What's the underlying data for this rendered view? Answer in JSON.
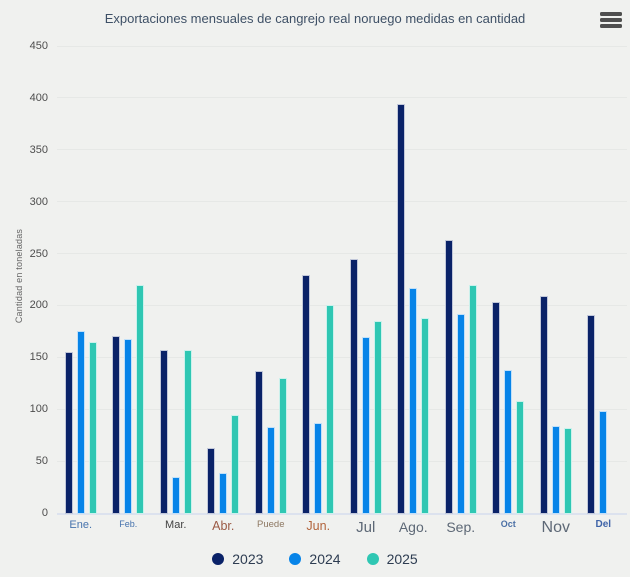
{
  "title": "Exportaciones mensuales de cangrejo real noruego medidas en cantidad",
  "context_menu": {
    "icon": "hamburger-menu-icon"
  },
  "colors": {
    "background": "#f0f1ef",
    "grid": "#e6e8e6",
    "axis_line": "#dce2ee",
    "title_text": "#3e5066",
    "ytick_text": "#4d4d4d",
    "y_axis_title_text": "#666666",
    "legend_text": "#2e3d52",
    "series_2023": "#0a2268",
    "series_2024": "#0784e8",
    "series_2025": "#2fc7b3"
  },
  "chart_data": {
    "type": "bar",
    "title": "Exportaciones mensuales de cangrejo real noruego medidas en cantidad",
    "xlabel": "",
    "ylabel": "Cantidad en toneladas",
    "ylim": [
      0,
      450
    ],
    "ytick_step": 50,
    "yticks": [
      0,
      50,
      100,
      150,
      200,
      250,
      300,
      350,
      400,
      450
    ],
    "grid": "horizontal",
    "legend_position": "bottom",
    "categories": [
      "Ene.",
      "Feb.",
      "Mar.",
      "Abr.",
      "Puede",
      "Jun.",
      "Jul",
      "Ago.",
      "Sep.",
      "Oct",
      "Nov",
      "Del"
    ],
    "category_label_styles": [
      {
        "color": "#4673ad",
        "size": 11,
        "weight": 400
      },
      {
        "color": "#4673ad",
        "size": 9,
        "weight": 400
      },
      {
        "color": "#424242",
        "size": 11,
        "weight": 400
      },
      {
        "color": "#9b5a45",
        "size": 12.5,
        "weight": 400
      },
      {
        "color": "#8d7862",
        "size": 9.5,
        "weight": 400
      },
      {
        "color": "#b2643c",
        "size": 12.5,
        "weight": 400
      },
      {
        "color": "#5d6876",
        "size": 15,
        "weight": 400
      },
      {
        "color": "#5d6876",
        "size": 14,
        "weight": 400
      },
      {
        "color": "#5d6876",
        "size": 14,
        "weight": 400
      },
      {
        "color": "#4a6fa5",
        "size": 9,
        "weight": 600
      },
      {
        "color": "#5d6876",
        "size": 16,
        "weight": 400
      },
      {
        "color": "#3f64a8",
        "size": 10,
        "weight": 600
      }
    ],
    "series": [
      {
        "name": "2023",
        "color": "#0a2268",
        "values": [
          155,
          171,
          157,
          63,
          137,
          229,
          245,
          394,
          263,
          203,
          209,
          191
        ]
      },
      {
        "name": "2024",
        "color": "#0784e8",
        "values": [
          175,
          168,
          35,
          39,
          83,
          87,
          170,
          217,
          192,
          138,
          84,
          98
        ]
      },
      {
        "name": "2025",
        "color": "#2fc7b3",
        "values": [
          165,
          220,
          157,
          94,
          130,
          200,
          185,
          188,
          220,
          108,
          82,
          null
        ]
      }
    ]
  }
}
